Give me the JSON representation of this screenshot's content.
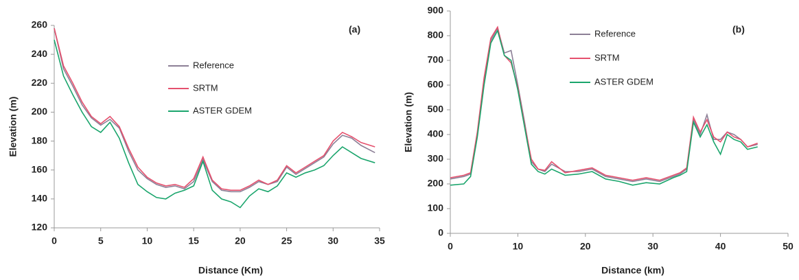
{
  "chart_data": [
    {
      "type": "line",
      "title": "(a)",
      "x_label": "Distance (Km)",
      "y_label": "Elevation (m)",
      "x": [
        0,
        1,
        2,
        3,
        4,
        5,
        6,
        7,
        8,
        9,
        10,
        11,
        12,
        13,
        14,
        15,
        16,
        17,
        18,
        19,
        20,
        21,
        22,
        23,
        24,
        25,
        26,
        27,
        28,
        29,
        30,
        31,
        32,
        33,
        34.5
      ],
      "xlim": [
        0,
        35
      ],
      "xticks": [
        0,
        5,
        10,
        15,
        20,
        25,
        30,
        35
      ],
      "ylim": [
        120,
        260
      ],
      "yticks": [
        120,
        140,
        160,
        180,
        200,
        220,
        240,
        260
      ],
      "series": [
        {
          "name": "Reference",
          "color": "#8c7f96",
          "values": [
            258,
            230,
            218,
            205,
            196,
            191,
            195,
            189,
            173,
            160,
            154,
            150,
            148,
            149,
            147,
            152,
            167,
            152,
            146,
            145,
            145,
            148,
            152,
            150,
            152,
            162,
            157,
            161,
            165,
            169,
            178,
            184,
            182,
            177,
            172
          ]
        },
        {
          "name": "SRTM",
          "color": "#e5506d",
          "values": [
            258,
            232,
            220,
            207,
            197,
            192,
            197,
            190,
            175,
            162,
            155,
            151,
            149,
            150,
            148,
            154,
            169,
            153,
            147,
            146,
            146,
            149,
            153,
            150,
            153,
            163,
            158,
            162,
            166,
            170,
            180,
            186,
            183,
            179,
            176
          ]
        },
        {
          "name": "ASTER GDEM",
          "color": "#1aa56c",
          "values": [
            250,
            225,
            212,
            200,
            190,
            186,
            193,
            182,
            165,
            150,
            145,
            141,
            140,
            144,
            146,
            149,
            166,
            146,
            140,
            138,
            134,
            142,
            147,
            145,
            149,
            158,
            155,
            158,
            160,
            163,
            170,
            176,
            172,
            168,
            165
          ]
        }
      ]
    },
    {
      "type": "line",
      "title": "(b)",
      "x_label": "Distance (km)",
      "y_label": "Elevation (m)",
      "x": [
        0,
        2,
        3,
        4,
        5,
        6,
        7,
        8,
        9,
        10,
        11,
        12,
        13,
        14,
        15,
        17,
        19,
        21,
        23,
        25,
        27,
        29,
        31,
        33,
        34,
        35,
        36,
        37,
        38,
        39,
        40,
        41,
        42,
        43,
        44,
        45.5
      ],
      "xlim": [
        0,
        50
      ],
      "xticks": [
        0,
        10,
        20,
        30,
        40,
        50
      ],
      "ylim": [
        0,
        900
      ],
      "yticks": [
        0,
        100,
        200,
        300,
        400,
        500,
        600,
        700,
        800,
        900
      ],
      "series": [
        {
          "name": "Reference",
          "color": "#8c7f96",
          "values": [
            220,
            230,
            240,
            400,
            620,
            780,
            830,
            730,
            740,
            600,
            450,
            290,
            260,
            250,
            280,
            250,
            250,
            260,
            230,
            220,
            210,
            220,
            210,
            230,
            240,
            260,
            460,
            400,
            480,
            380,
            380,
            410,
            400,
            380,
            350,
            360
          ]
        },
        {
          "name": "SRTM",
          "color": "#e5506d",
          "values": [
            225,
            235,
            245,
            410,
            630,
            790,
            835,
            720,
            690,
            590,
            440,
            300,
            260,
            255,
            290,
            245,
            255,
            265,
            235,
            225,
            215,
            225,
            215,
            235,
            245,
            265,
            470,
            410,
            460,
            390,
            370,
            410,
            390,
            380,
            350,
            365
          ]
        },
        {
          "name": "ASTER GDEM",
          "color": "#1aa56c",
          "values": [
            195,
            200,
            230,
            390,
            600,
            770,
            820,
            720,
            700,
            580,
            430,
            280,
            250,
            240,
            260,
            235,
            240,
            250,
            220,
            210,
            195,
            205,
            200,
            225,
            235,
            250,
            450,
            390,
            440,
            370,
            320,
            400,
            380,
            370,
            340,
            350
          ]
        }
      ]
    }
  ]
}
